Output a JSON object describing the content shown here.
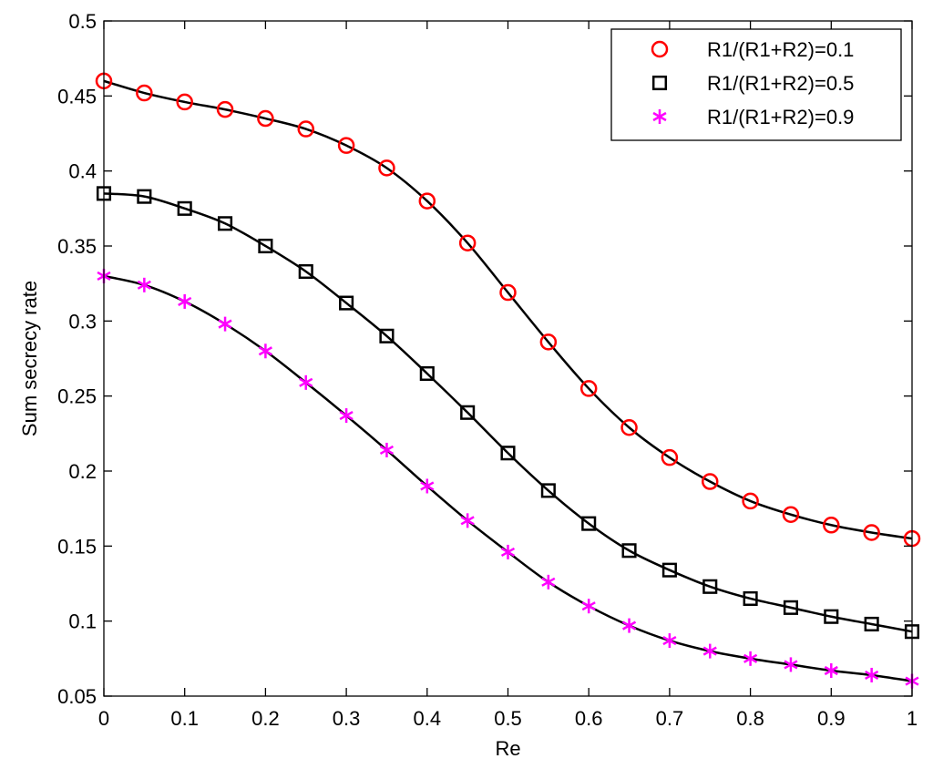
{
  "chart_data": {
    "type": "line",
    "xlabel": "Re",
    "ylabel": "Sum secrecy rate",
    "xlim": [
      0,
      1
    ],
    "ylim": [
      0.05,
      0.5
    ],
    "xticks": [
      0,
      0.1,
      0.2,
      0.3,
      0.4,
      0.5,
      0.6,
      0.7,
      0.8,
      0.9,
      1
    ],
    "yticks": [
      0.05,
      0.1,
      0.15,
      0.2,
      0.25,
      0.3,
      0.35,
      0.4,
      0.45,
      0.5
    ],
    "xtick_labels": [
      "0",
      "0.1",
      "0.2",
      "0.3",
      "0.4",
      "0.5",
      "0.6",
      "0.7",
      "0.8",
      "0.9",
      "1"
    ],
    "ytick_labels": [
      "0.05",
      "0.1",
      "0.15",
      "0.2",
      "0.25",
      "0.3",
      "0.35",
      "0.4",
      "0.45",
      "0.5"
    ],
    "grid": false,
    "legend_position": "top-right",
    "x": [
      0,
      0.05,
      0.1,
      0.15,
      0.2,
      0.25,
      0.3,
      0.35,
      0.4,
      0.45,
      0.5,
      0.55,
      0.6,
      0.65,
      0.7,
      0.75,
      0.8,
      0.85,
      0.9,
      0.95,
      1
    ],
    "series": [
      {
        "name": "R1/(R1+R2)=0.1",
        "marker": "circle",
        "marker_color": "#ff0000",
        "line_color": "#000000",
        "values": [
          0.46,
          0.452,
          0.446,
          0.441,
          0.435,
          0.428,
          0.417,
          0.402,
          0.38,
          0.352,
          0.319,
          0.286,
          0.255,
          0.229,
          0.209,
          0.193,
          0.18,
          0.171,
          0.164,
          0.159,
          0.155
        ]
      },
      {
        "name": "R1/(R1+R2)=0.5",
        "marker": "square",
        "marker_color": "#000000",
        "line_color": "#000000",
        "values": [
          0.385,
          0.383,
          0.375,
          0.365,
          0.35,
          0.333,
          0.312,
          0.29,
          0.265,
          0.239,
          0.212,
          0.187,
          0.165,
          0.147,
          0.134,
          0.123,
          0.115,
          0.109,
          0.103,
          0.098,
          0.093
        ]
      },
      {
        "name": "R1/(R1+R2)=0.9",
        "marker": "asterisk",
        "marker_color": "#ff00ff",
        "line_color": "#000000",
        "values": [
          0.33,
          0.324,
          0.313,
          0.298,
          0.28,
          0.259,
          0.237,
          0.214,
          0.19,
          0.167,
          0.146,
          0.126,
          0.11,
          0.097,
          0.087,
          0.08,
          0.075,
          0.071,
          0.067,
          0.064,
          0.06
        ]
      }
    ]
  }
}
